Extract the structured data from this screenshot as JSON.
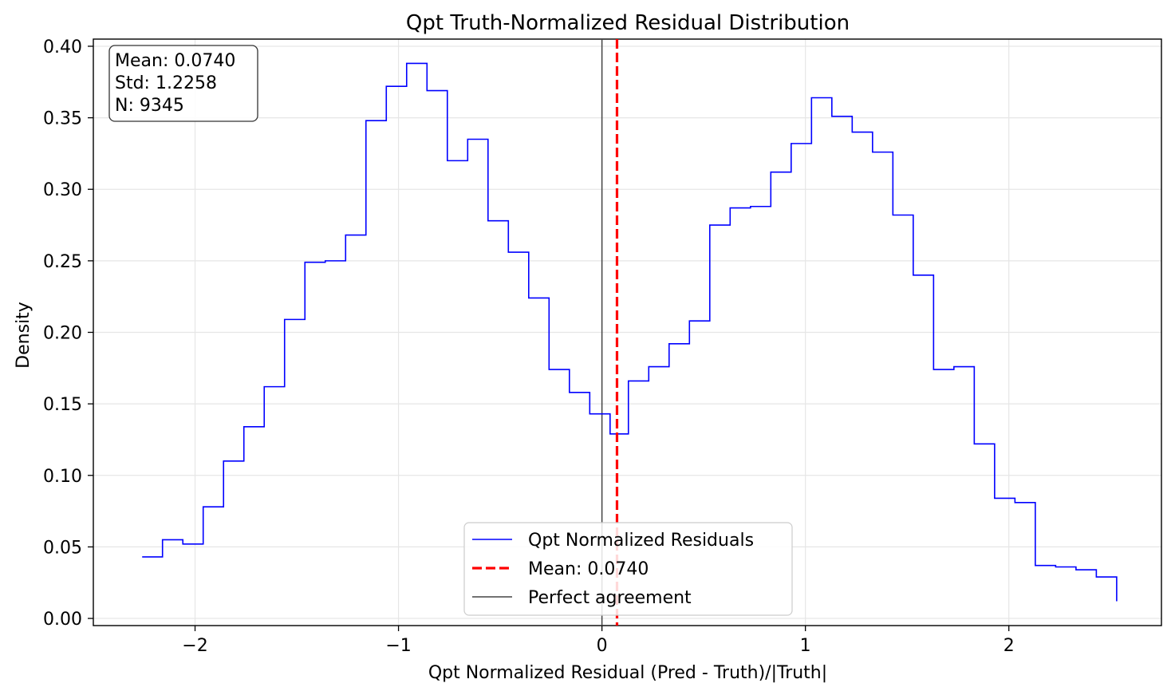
{
  "chart_data": {
    "type": "histogram-step",
    "title": "Qpt Truth-Normalized Residual Distribution",
    "xlabel": "Qpt Normalized Residual (Pred - Truth)/|Truth|",
    "ylabel": "Density",
    "xlim": [
      -2.5,
      2.75
    ],
    "ylim": [
      -0.005,
      0.405
    ],
    "xticks": [
      -2,
      -1,
      0,
      1,
      2
    ],
    "xtick_labels": [
      "−2",
      "−1",
      "0",
      "1",
      "2"
    ],
    "yticks": [
      0.0,
      0.05,
      0.1,
      0.15,
      0.2,
      0.25,
      0.3,
      0.35,
      0.4
    ],
    "ytick_labels": [
      "0.00",
      "0.05",
      "0.10",
      "0.15",
      "0.20",
      "0.25",
      "0.30",
      "0.35",
      "0.40"
    ],
    "grid": true,
    "bins": {
      "edges": [
        -2.26,
        -2.16,
        -2.06,
        -1.96,
        -1.86,
        -1.76,
        -1.66,
        -1.56,
        -1.46,
        -1.36,
        -1.26,
        -1.16,
        -1.06,
        -0.96,
        -0.86,
        -0.76,
        -0.66,
        -0.56,
        -0.46,
        -0.36,
        -0.26,
        -0.16,
        -0.06,
        0.04,
        0.13,
        0.23,
        0.33,
        0.43,
        0.53,
        0.63,
        0.73,
        0.83,
        0.93,
        1.03,
        1.13,
        1.23,
        1.33,
        1.43,
        1.53,
        1.63,
        1.73,
        1.83,
        1.93,
        2.03,
        2.13,
        2.23,
        2.33,
        2.43,
        2.53
      ],
      "densities": [
        0.043,
        0.055,
        0.052,
        0.078,
        0.11,
        0.134,
        0.162,
        0.209,
        0.249,
        0.25,
        0.268,
        0.348,
        0.372,
        0.388,
        0.369,
        0.32,
        0.335,
        0.278,
        0.256,
        0.224,
        0.174,
        0.158,
        0.143,
        0.129,
        0.166,
        0.176,
        0.192,
        0.208,
        0.275,
        0.287,
        0.288,
        0.312,
        0.332,
        0.364,
        0.351,
        0.34,
        0.326,
        0.282,
        0.24,
        0.174,
        0.176,
        0.122,
        0.084,
        0.081,
        0.037,
        0.036,
        0.034,
        0.029
      ],
      "end_drop": 0.012
    },
    "mean_line": {
      "x": 0.074
    },
    "reference_line": {
      "x": 0.0
    },
    "legend": {
      "placement": "lower-center",
      "entries": [
        {
          "label": "Qpt Normalized Residuals",
          "color": "#0000ff",
          "style": "solid"
        },
        {
          "label": "Mean: 0.0740",
          "color": "#ff0000",
          "style": "dashed"
        },
        {
          "label": "Perfect agreement",
          "color": "#444444",
          "style": "solid"
        }
      ]
    },
    "stats_box": {
      "placement": "top-left",
      "lines": [
        "Mean: 0.0740",
        "Std: 1.2258",
        "N: 9345"
      ]
    },
    "colors": {
      "hist": "#0000ff",
      "mean": "#ff0000",
      "reference": "#444444",
      "grid": "#e6e6e6"
    }
  }
}
